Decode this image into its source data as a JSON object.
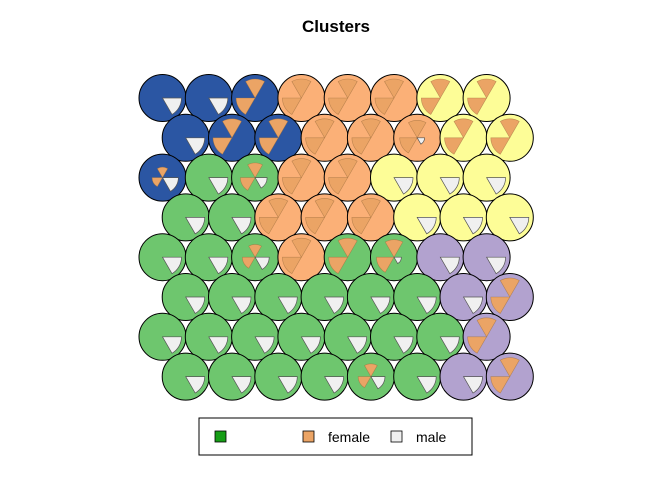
{
  "chart_data": {
    "type": "som-codes",
    "title": "Clusters",
    "grid": {
      "xdim": 8,
      "ydim": 8,
      "topology": "hexagonal"
    },
    "cluster_colors": {
      "blue": "#2B56A3",
      "orange": "#FBB077",
      "yellow": "#FDFD97",
      "green": "#6EC66E",
      "purple": "#B2A2CF"
    },
    "segment_colors": {
      "first": "#169E16",
      "female": "#EBA465",
      "male": "#F0F0F0"
    },
    "legend": [
      {
        "label": "",
        "color": "#169E16"
      },
      {
        "label": "female",
        "color": "#EBA465"
      },
      {
        "label": "male",
        "color": "#F0F0F0"
      }
    ],
    "rows_top_to_bottom": [
      {
        "clusters": [
          "blue",
          "blue",
          "blue",
          "orange",
          "orange",
          "orange",
          "yellow",
          "yellow"
        ],
        "female": [
          0,
          0,
          1,
          1,
          1,
          1,
          1,
          1
        ],
        "male": [
          1,
          1,
          0,
          0,
          0,
          0,
          0,
          0
        ]
      },
      {
        "clusters": [
          "blue",
          "blue",
          "blue",
          "orange",
          "orange",
          "orange",
          "yellow",
          "yellow"
        ],
        "female": [
          0,
          1,
          1,
          1,
          1,
          0.85,
          1,
          1
        ],
        "male": [
          1,
          0,
          0,
          0,
          0,
          0.15,
          0,
          0
        ]
      },
      {
        "clusters": [
          "blue",
          "green",
          "green",
          "orange",
          "orange",
          "yellow",
          "yellow",
          "yellow"
        ],
        "female": [
          0.3,
          0,
          0.6,
          1,
          1,
          0,
          0,
          0
        ],
        "male": [
          0.7,
          1,
          0.4,
          0,
          0,
          1,
          1,
          1
        ]
      },
      {
        "clusters": [
          "green",
          "green",
          "orange",
          "orange",
          "orange",
          "yellow",
          "yellow",
          "yellow"
        ],
        "female": [
          0,
          0,
          1,
          1,
          1,
          0,
          0,
          0
        ],
        "male": [
          1,
          1,
          0,
          0,
          0,
          1,
          1,
          1
        ]
      },
      {
        "clusters": [
          "green",
          "green",
          "green",
          "orange",
          "green",
          "green",
          "purple",
          "purple"
        ],
        "female": [
          0,
          0,
          0.45,
          1,
          1,
          0.85,
          0,
          0
        ],
        "male": [
          1,
          1,
          0.55,
          0,
          0,
          0.15,
          1,
          1
        ]
      },
      {
        "clusters": [
          "green",
          "green",
          "green",
          "green",
          "green",
          "green",
          "purple",
          "purple"
        ],
        "female": [
          0,
          0,
          0,
          0,
          0,
          0,
          0,
          1
        ],
        "male": [
          1,
          1,
          1,
          1,
          1,
          1,
          1,
          0
        ]
      },
      {
        "clusters": [
          "green",
          "green",
          "green",
          "green",
          "green",
          "green",
          "green",
          "purple"
        ],
        "female": [
          0,
          0,
          0,
          0,
          0,
          0,
          0,
          1
        ],
        "male": [
          1,
          1,
          1,
          1,
          1,
          1,
          1,
          0
        ]
      },
      {
        "clusters": [
          "green",
          "green",
          "green",
          "green",
          "green",
          "green",
          "purple",
          "purple"
        ],
        "female": [
          0,
          0,
          0,
          0,
          0.45,
          0,
          0,
          1
        ],
        "male": [
          1,
          1,
          1,
          1,
          0.55,
          1,
          1,
          0
        ]
      }
    ]
  }
}
